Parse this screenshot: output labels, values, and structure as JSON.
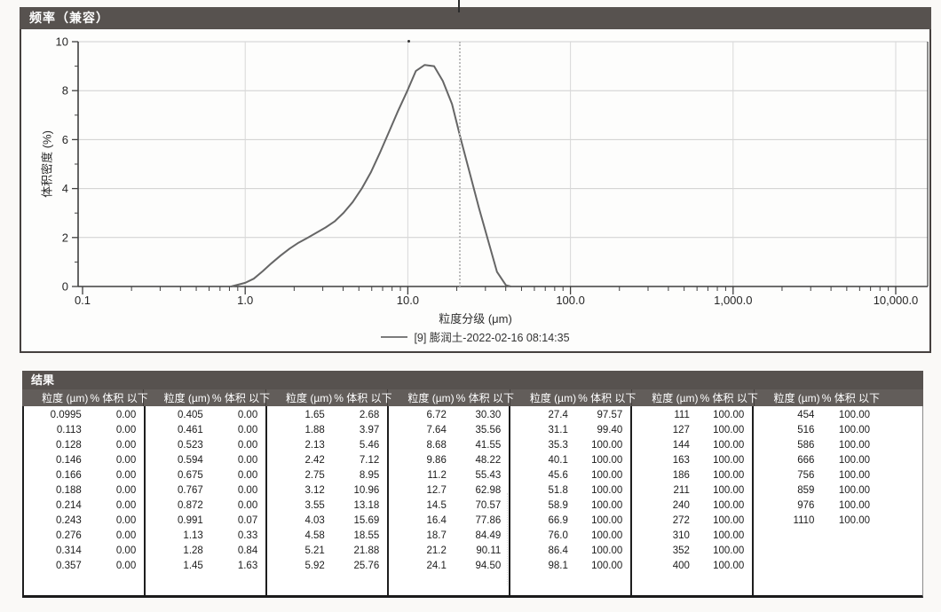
{
  "page": {
    "background": "#faf9f7"
  },
  "frequency_panel": {
    "title": "频率（兼容）"
  },
  "chart_data": {
    "type": "line",
    "title": "频率（兼容）",
    "xlabel": "粒度分级 (μm)",
    "ylabel": "体积密度 (%)",
    "x_scale": "log",
    "xlim": [
      0.1,
      10000
    ],
    "ylim": [
      0,
      10
    ],
    "x_tick_labels": [
      "0.1",
      "1.0",
      "10.0",
      "100.0",
      "1,000.0",
      "10,000.0"
    ],
    "x_tick_values": [
      0.1,
      1,
      10,
      100,
      1000,
      10000
    ],
    "y_tick_values": [
      0,
      2,
      4,
      6,
      8,
      10
    ],
    "grid": true,
    "legend_position": "bottom",
    "series": [
      {
        "name": "[9] 膨润土-2022-02-16 08:14:35",
        "color": "#666666",
        "x": [
          0.82,
          1.0,
          1.13,
          1.28,
          1.45,
          1.65,
          1.88,
          2.13,
          2.42,
          2.75,
          3.12,
          3.55,
          4.03,
          4.58,
          5.21,
          5.92,
          6.72,
          7.64,
          8.68,
          9.86,
          11.2,
          12.7,
          14.5,
          16.4,
          18.7,
          21.2,
          24.1,
          27.4,
          31.1,
          35.3,
          40.1,
          43.0
        ],
        "y": [
          0.0,
          0.15,
          0.32,
          0.62,
          0.95,
          1.26,
          1.55,
          1.79,
          1.99,
          2.2,
          2.41,
          2.66,
          3.01,
          3.45,
          4.0,
          4.66,
          5.45,
          6.3,
          7.15,
          7.95,
          8.8,
          9.05,
          9.0,
          8.4,
          7.45,
          6.0,
          4.6,
          3.2,
          1.9,
          0.6,
          0.05,
          0.0
        ]
      }
    ]
  },
  "results": {
    "title": "结果",
    "column_headers": {
      "size": "粒度 (µm)",
      "pct": "% 体积 以下"
    },
    "groups": [
      [
        [
          "0.0995",
          "0.00"
        ],
        [
          "0.113",
          "0.00"
        ],
        [
          "0.128",
          "0.00"
        ],
        [
          "0.146",
          "0.00"
        ],
        [
          "0.166",
          "0.00"
        ],
        [
          "0.188",
          "0.00"
        ],
        [
          "0.214",
          "0.00"
        ],
        [
          "0.243",
          "0.00"
        ],
        [
          "0.276",
          "0.00"
        ],
        [
          "0.314",
          "0.00"
        ],
        [
          "0.357",
          "0.00"
        ]
      ],
      [
        [
          "0.405",
          "0.00"
        ],
        [
          "0.461",
          "0.00"
        ],
        [
          "0.523",
          "0.00"
        ],
        [
          "0.594",
          "0.00"
        ],
        [
          "0.675",
          "0.00"
        ],
        [
          "0.767",
          "0.00"
        ],
        [
          "0.872",
          "0.00"
        ],
        [
          "0.991",
          "0.07"
        ],
        [
          "1.13",
          "0.33"
        ],
        [
          "1.28",
          "0.84"
        ],
        [
          "1.45",
          "1.63"
        ]
      ],
      [
        [
          "1.65",
          "2.68"
        ],
        [
          "1.88",
          "3.97"
        ],
        [
          "2.13",
          "5.46"
        ],
        [
          "2.42",
          "7.12"
        ],
        [
          "2.75",
          "8.95"
        ],
        [
          "3.12",
          "10.96"
        ],
        [
          "3.55",
          "13.18"
        ],
        [
          "4.03",
          "15.69"
        ],
        [
          "4.58",
          "18.55"
        ],
        [
          "5.21",
          "21.88"
        ],
        [
          "5.92",
          "25.76"
        ]
      ],
      [
        [
          "6.72",
          "30.30"
        ],
        [
          "7.64",
          "35.56"
        ],
        [
          "8.68",
          "41.55"
        ],
        [
          "9.86",
          "48.22"
        ],
        [
          "11.2",
          "55.43"
        ],
        [
          "12.7",
          "62.98"
        ],
        [
          "14.5",
          "70.57"
        ],
        [
          "16.4",
          "77.86"
        ],
        [
          "18.7",
          "84.49"
        ],
        [
          "21.2",
          "90.11"
        ],
        [
          "24.1",
          "94.50"
        ]
      ],
      [
        [
          "27.4",
          "97.57"
        ],
        [
          "31.1",
          "99.40"
        ],
        [
          "35.3",
          "100.00"
        ],
        [
          "40.1",
          "100.00"
        ],
        [
          "45.6",
          "100.00"
        ],
        [
          "51.8",
          "100.00"
        ],
        [
          "58.9",
          "100.00"
        ],
        [
          "66.9",
          "100.00"
        ],
        [
          "76.0",
          "100.00"
        ],
        [
          "86.4",
          "100.00"
        ],
        [
          "98.1",
          "100.00"
        ]
      ],
      [
        [
          "111",
          "100.00"
        ],
        [
          "127",
          "100.00"
        ],
        [
          "144",
          "100.00"
        ],
        [
          "163",
          "100.00"
        ],
        [
          "186",
          "100.00"
        ],
        [
          "211",
          "100.00"
        ],
        [
          "240",
          "100.00"
        ],
        [
          "272",
          "100.00"
        ],
        [
          "310",
          "100.00"
        ],
        [
          "352",
          "100.00"
        ],
        [
          "400",
          "100.00"
        ]
      ],
      [
        [
          "454",
          "100.00"
        ],
        [
          "516",
          "100.00"
        ],
        [
          "586",
          "100.00"
        ],
        [
          "666",
          "100.00"
        ],
        [
          "756",
          "100.00"
        ],
        [
          "859",
          "100.00"
        ],
        [
          "976",
          "100.00"
        ],
        [
          "1110",
          "100.00"
        ]
      ]
    ]
  }
}
